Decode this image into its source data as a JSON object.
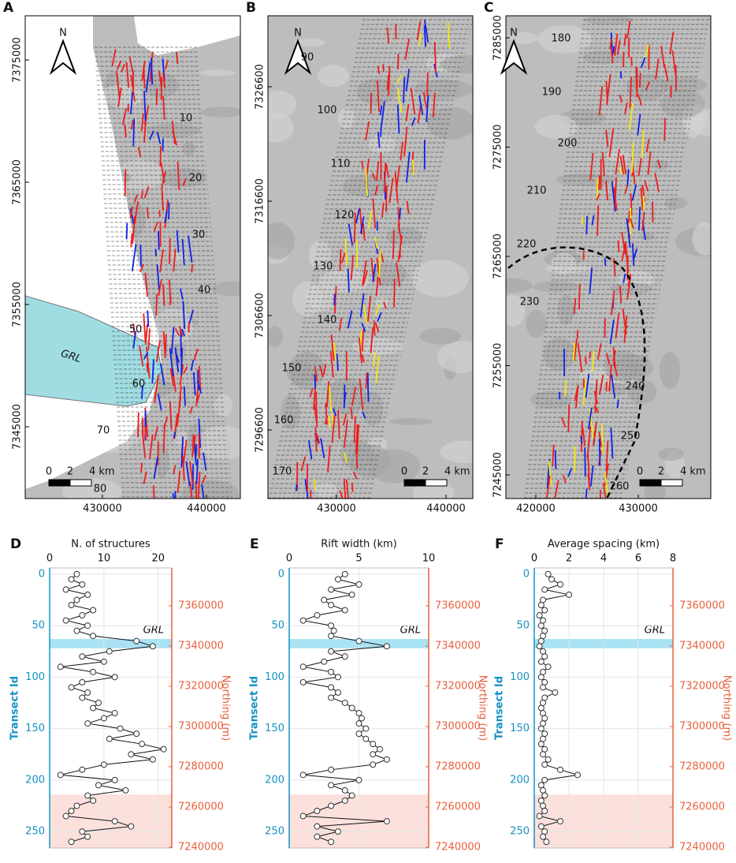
{
  "maps": [
    {
      "panel": "A",
      "north_label": "N",
      "annotation": "GRL",
      "scale_labels": [
        "0",
        "2",
        "4 km"
      ],
      "xlim": [
        422576,
        443258
      ],
      "ylim": [
        7378613,
        7339129
      ],
      "xticks": [
        430000,
        440000
      ],
      "yticks": [
        7375000,
        7365000,
        7355000,
        7345000
      ],
      "transect_labels": [
        "10",
        "20",
        "30",
        "40",
        "50",
        "60",
        "70",
        "80"
      ]
    },
    {
      "panel": "B",
      "north_label": "N",
      "scale_labels": [
        "0",
        "2",
        "4 km"
      ],
      "xlim": [
        423741,
        442446
      ],
      "ylim": [
        7332807,
        7290600
      ],
      "xticks": [
        430000,
        440000
      ],
      "yticks": [
        7326600,
        7316600,
        7306600,
        7296600
      ],
      "transect_labels": [
        "90",
        "100",
        "110",
        "120",
        "130",
        "140",
        "150",
        "160",
        "170"
      ]
    },
    {
      "panel": "C",
      "north_label": "N",
      "scale_labels": [
        "0",
        "2",
        "4 km"
      ],
      "xlim": [
        417077,
        437077
      ],
      "ylim": [
        7287022,
        7242834
      ],
      "xticks": [
        420000,
        430000
      ],
      "yticks": [
        7285000,
        7275000,
        7265000,
        7255000,
        7245000
      ],
      "transect_labels": [
        "180",
        "190",
        "200",
        "210",
        "220",
        "230",
        "240",
        "250",
        "260"
      ]
    }
  ],
  "chart_data": [
    {
      "type": "line",
      "panel": "D",
      "xlabel": "N. of structures",
      "ylabel": "Transect Id",
      "y2label": "Northing (m)",
      "xlim": [
        0,
        22.5
      ],
      "xticks": [
        0,
        10,
        20
      ],
      "ylim": [
        -6,
        266
      ],
      "yticks": [
        0,
        50,
        100,
        150,
        200,
        250
      ],
      "y2lim": [
        7378800,
        7239600
      ],
      "y2ticks": [
        7360000,
        7340000,
        7320000,
        7300000,
        7280000,
        7260000,
        7240000
      ],
      "bands": [
        {
          "label": "GRL",
          "range": [
            63,
            72
          ],
          "color": "#a9e2f3"
        },
        {
          "range": [
            214,
            266
          ],
          "color": "#fbe0dc"
        }
      ],
      "transects": [
        0,
        5,
        10,
        15,
        20,
        25,
        30,
        35,
        40,
        45,
        50,
        55,
        60,
        65,
        70,
        75,
        80,
        85,
        90,
        95,
        100,
        105,
        110,
        115,
        120,
        125,
        130,
        135,
        140,
        145,
        150,
        155,
        160,
        165,
        170,
        175,
        180,
        185,
        190,
        195,
        200,
        205,
        210,
        215,
        220,
        225,
        230,
        235,
        240,
        245,
        250,
        255,
        260
      ],
      "values": [
        5,
        4,
        6,
        3,
        7,
        5,
        4,
        8,
        6,
        3,
        7,
        5,
        8,
        16,
        19,
        11,
        6,
        10,
        2,
        8,
        12,
        6,
        4,
        7,
        6,
        9,
        8,
        12,
        10,
        7,
        13,
        16,
        11,
        17,
        21,
        15,
        19,
        10,
        6,
        2,
        12,
        9,
        14,
        7,
        8,
        5,
        4,
        3,
        12,
        15,
        6,
        7,
        4
      ]
    },
    {
      "type": "line",
      "panel": "E",
      "xlabel": "Rift width (km)",
      "ylabel": "Transect Id",
      "y2label": "Northing (m)",
      "xlim": [
        0,
        10
      ],
      "xticks": [
        0,
        5,
        10
      ],
      "ylim": [
        -6,
        266
      ],
      "yticks": [
        0,
        50,
        100,
        150,
        200,
        250
      ],
      "y2lim": [
        7378800,
        7239600
      ],
      "y2ticks": [
        7360000,
        7340000,
        7320000,
        7300000,
        7280000,
        7260000,
        7240000
      ],
      "bands": [
        {
          "label": "GRL",
          "range": [
            63,
            72
          ],
          "color": "#a9e2f3"
        },
        {
          "range": [
            214,
            266
          ],
          "color": "#fbe0dc"
        }
      ],
      "transects": [
        0,
        5,
        10,
        15,
        20,
        25,
        30,
        35,
        40,
        45,
        50,
        55,
        60,
        65,
        70,
        75,
        80,
        85,
        90,
        95,
        100,
        105,
        110,
        115,
        120,
        125,
        130,
        135,
        140,
        145,
        150,
        155,
        160,
        165,
        170,
        175,
        180,
        185,
        190,
        195,
        200,
        205,
        210,
        215,
        220,
        225,
        230,
        235,
        240,
        245,
        250,
        255,
        260
      ],
      "values": [
        4,
        3.5,
        5,
        3,
        4.5,
        2.5,
        3,
        4,
        2,
        1,
        3,
        3.2,
        3,
        5,
        7,
        3,
        4,
        2.5,
        1,
        3,
        3.5,
        1,
        3,
        3.5,
        3,
        4,
        4.5,
        5,
        5.2,
        5,
        5.5,
        5,
        5.5,
        6,
        6.5,
        6,
        7,
        6,
        3,
        1,
        5,
        3,
        4,
        4.5,
        4,
        3,
        2,
        1,
        7,
        2,
        3.5,
        2,
        3
      ]
    },
    {
      "type": "line",
      "panel": "F",
      "xlabel": "Average spacing (km)",
      "ylabel": "Transect Id",
      "y2label": "Northing (m)",
      "xlim": [
        0,
        8
      ],
      "xticks": [
        0,
        2,
        4,
        6,
        8
      ],
      "ylim": [
        -6,
        266
      ],
      "yticks": [
        0,
        50,
        100,
        150,
        200,
        250
      ],
      "y2lim": [
        7378800,
        7239600
      ],
      "y2ticks": [
        7360000,
        7340000,
        7320000,
        7300000,
        7280000,
        7260000,
        7240000
      ],
      "bands": [
        {
          "label": "GRL",
          "range": [
            63,
            72
          ],
          "color": "#a9e2f3"
        },
        {
          "range": [
            214,
            266
          ],
          "color": "#fbe0dc"
        }
      ],
      "transects": [
        0,
        5,
        10,
        15,
        20,
        25,
        30,
        35,
        40,
        45,
        50,
        55,
        60,
        65,
        70,
        75,
        80,
        85,
        90,
        95,
        100,
        105,
        110,
        115,
        120,
        125,
        130,
        135,
        140,
        145,
        150,
        155,
        160,
        165,
        170,
        175,
        180,
        185,
        190,
        195,
        200,
        205,
        210,
        215,
        220,
        225,
        230,
        235,
        240,
        245,
        250,
        255,
        260
      ],
      "values": [
        0.8,
        1,
        1.5,
        0.6,
        2,
        0.5,
        0.4,
        0.6,
        0.3,
        0.5,
        0.4,
        0.6,
        0.5,
        0.4,
        0.3,
        0.5,
        0.6,
        0.4,
        0.8,
        0.5,
        0.4,
        0.6,
        0.5,
        1.2,
        0.6,
        0.5,
        0.4,
        0.5,
        0.6,
        0.5,
        0.4,
        0.6,
        0.5,
        0.4,
        0.6,
        0.5,
        0.8,
        0.6,
        1.5,
        2.5,
        0.6,
        0.4,
        0.5,
        0.6,
        0.4,
        0.5,
        0.6,
        0.3,
        1.5,
        0.4,
        0.6,
        0.5,
        0.7
      ]
    }
  ]
}
